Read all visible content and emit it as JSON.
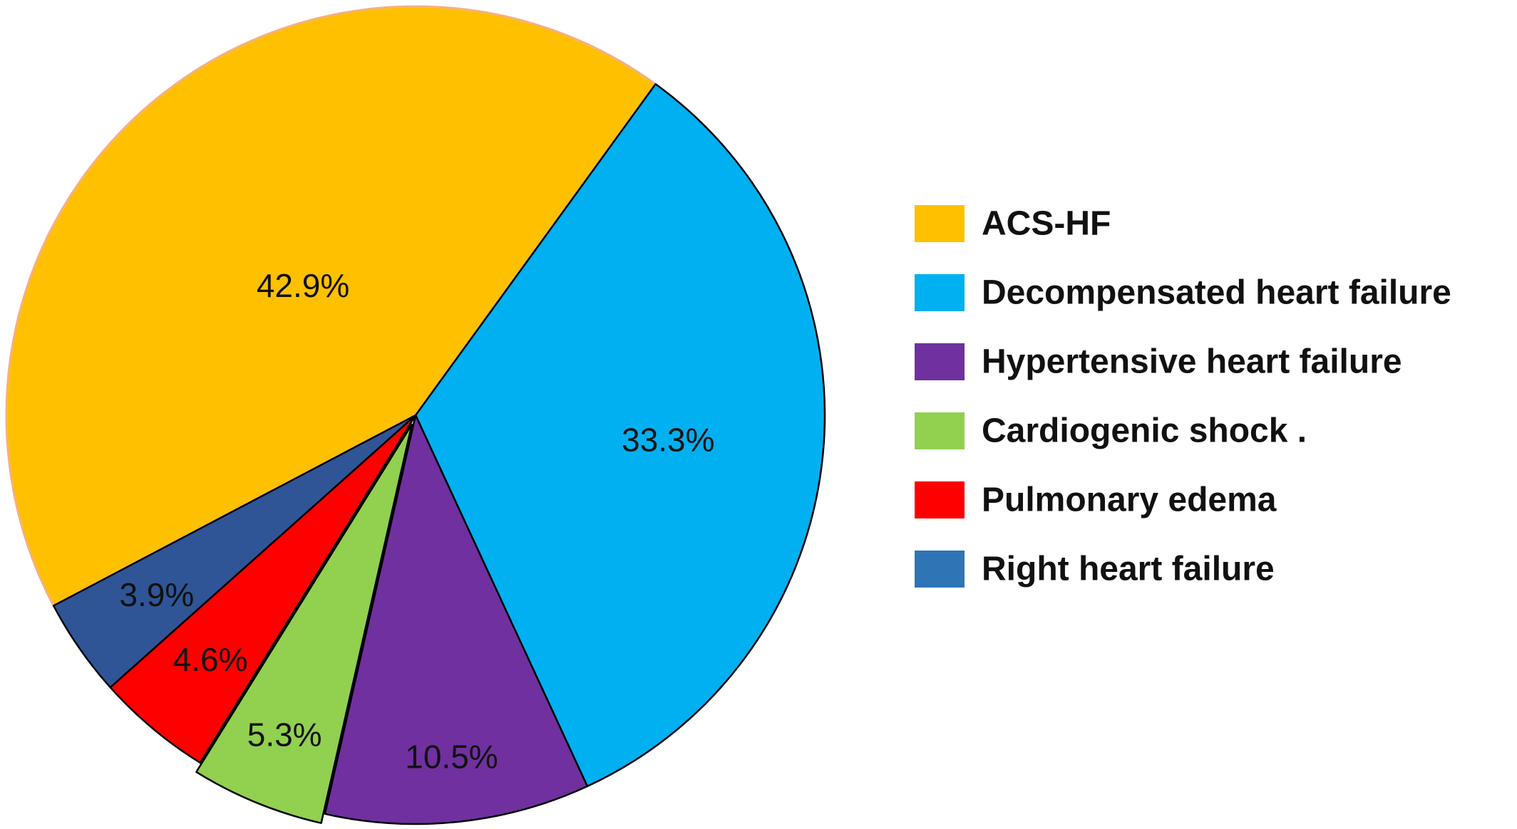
{
  "chart_data": {
    "type": "pie",
    "legend_position": "right",
    "slices": [
      {
        "name": "ACS-HF",
        "value": 42.9,
        "label": "42.9%",
        "color": "#FFC000",
        "stroke": "#F4B183"
      },
      {
        "name": "Decompensated heart failure",
        "value": 33.3,
        "label": "33.3%",
        "color": "#00B0F0",
        "stroke": "#000000"
      },
      {
        "name": "Hypertensive heart failure",
        "value": 10.5,
        "label": "10.5%",
        "color": "#7030A0",
        "stroke": "#000000"
      },
      {
        "name": "Cardiogenic shock .",
        "value": 5.3,
        "label": "5.3%",
        "color": "#92D050",
        "stroke": "#000000",
        "exploded": true
      },
      {
        "name": "Pulmonary edema",
        "value": 4.6,
        "label": "4.6%",
        "color": "#FF0000",
        "stroke": "#000000"
      },
      {
        "name": "Right heart failure",
        "value": 3.9,
        "label": "3.9%",
        "color": "#2F5597",
        "stroke": "#000000"
      }
    ],
    "legend": [
      {
        "label": "ACS-HF",
        "color": "#FFC000"
      },
      {
        "label": "Decompensated heart failure",
        "color": "#00B0F0"
      },
      {
        "label": "Hypertensive heart failure",
        "color": "#7030A0"
      },
      {
        "label": "Cardiogenic shock .",
        "color": "#92D050"
      },
      {
        "label": "Pulmonary edema",
        "color": "#FF0000"
      },
      {
        "label": "Right heart failure",
        "color": "#2E75B6"
      }
    ]
  }
}
